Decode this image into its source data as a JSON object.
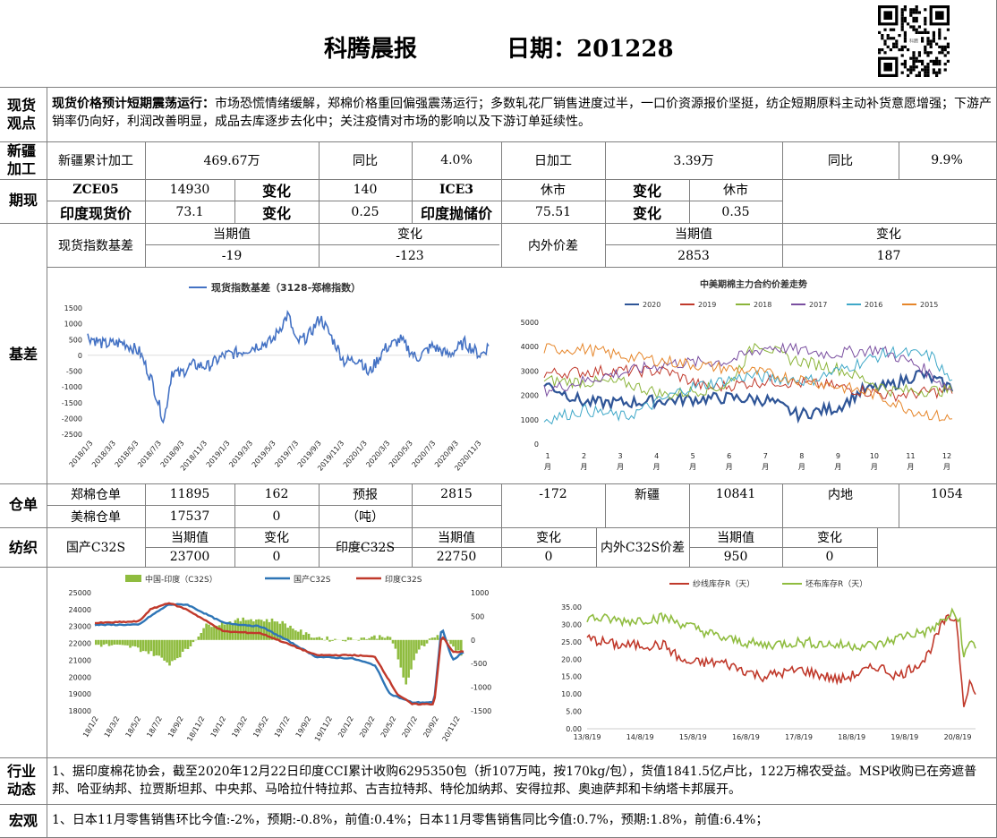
{
  "header": {
    "title": "科腾晨报",
    "date_label": "日期：201228",
    "qr_center_text": "科腾"
  },
  "spot": {
    "section_label": "现货观点",
    "headline": "现货价格预计短期震荡运行：",
    "body": "市场恐慌情绪缓解，郑棉价格重回偏强震荡运行；多数轧花厂销售进度过半，一口价资源报价坚挺，纺企短期原料主动补货意愿增强；下游产销率仍向好，利润改善明显，成品去库逐步去化中；关注疫情对市场的影响以及下游订单延续性。"
  },
  "xinjiang": {
    "section_label": "新疆加工",
    "cum_label": "新疆累计加工",
    "cum_value": "469.67万",
    "yoy_label": "同比",
    "yoy_value": "4.0%",
    "daily_label": "日加工",
    "daily_value": "3.39万",
    "yoy2_label": "同比",
    "yoy2_value": "9.9%"
  },
  "futures": {
    "section_label": "期现",
    "r1": [
      "ZCE05",
      "14930",
      "变化",
      "140",
      "ICE3",
      "休市",
      "变化",
      "休市"
    ],
    "r2": [
      "印度现货价",
      "73.1",
      "变化",
      "0.25",
      "印度抛储价",
      "75.51",
      "变化",
      "0.35"
    ]
  },
  "basis": {
    "section_label": "基差",
    "idx_label": "现货指数基差",
    "cur_label": "当期值",
    "chg_label": "变化",
    "cur_value": "-19",
    "chg_value": "-123",
    "inout_label": "内外价差",
    "cur2_label": "当期值",
    "chg2_label": "变化",
    "cur2_value": "2853",
    "chg2_value": "187"
  },
  "chart1": {
    "legend": "现货指数基差（3128-郑棉指数）",
    "color": "#4472c4",
    "y_ticks": [
      "1500",
      "1000",
      "500",
      "0",
      "-500",
      "-1000",
      "-1500",
      "-2000",
      "-2500"
    ],
    "x_ticks": [
      "2018/1/3",
      "2018/3/3",
      "2018/5/3",
      "2018/7/3",
      "2018/9/3",
      "2018/11/3",
      "2019/1/3",
      "2019/3/3",
      "2019/5/3",
      "2019/7/3",
      "2019/9/3",
      "2019/11/3",
      "2020/1/3",
      "2020/3/3",
      "2020/5/3",
      "2020/7/3",
      "2020/9/3",
      "2020/11/3"
    ]
  },
  "chart2": {
    "title": "中美期棉主力合约价差走势",
    "series": [
      {
        "name": "2020",
        "color": "#2f5597"
      },
      {
        "name": "2019",
        "color": "#c0392b"
      },
      {
        "name": "2018",
        "color": "#8bb43a"
      },
      {
        "name": "2017",
        "color": "#7a4fa0"
      },
      {
        "name": "2016",
        "color": "#3fa8c8"
      },
      {
        "name": "2015",
        "color": "#e6862a"
      }
    ],
    "y_ticks": [
      "5000",
      "4000",
      "3000",
      "2000",
      "1000",
      "0"
    ],
    "x_ticks": [
      "1",
      "2",
      "3",
      "4",
      "5",
      "6",
      "7",
      "8",
      "9",
      "10",
      "11",
      "12"
    ],
    "x_unit": "月"
  },
  "warehouse": {
    "section_label": "仓单",
    "zc_label": "郑棉仓单",
    "zc_value": "11895",
    "zc_chg": "162",
    "fc_label": "预报",
    "fc_value": "2815",
    "fc_chg": "-172",
    "xj_label": "新疆",
    "xj_value": "10841",
    "nd_label": "内地",
    "nd_value": "1054",
    "us_label": "美棉仓单",
    "us_value": "17537",
    "us_chg": "0",
    "unit": "（吨）"
  },
  "textile": {
    "section_label": "纺织",
    "dom_label": "国产C32S",
    "cur_label": "当期值",
    "chg_label": "变化",
    "dom_value": "23700",
    "dom_chg": "0",
    "ind_label": "印度C32S",
    "cur2_label": "当期值",
    "chg2_label": "变化",
    "ind_value": "22750",
    "ind_chg": "0",
    "spread_label": "内外C32S价差",
    "cur3_label": "当期值",
    "chg3_label": "变化",
    "spread_value": "950",
    "spread_chg": "0"
  },
  "chart3": {
    "legend": [
      {
        "name": "中国-印度（C32S）",
        "color": "#8fbc3f"
      },
      {
        "name": "国产C32S",
        "color": "#2e75b6"
      },
      {
        "name": "印度C32S",
        "color": "#c0392b"
      }
    ],
    "y_left": [
      "25000",
      "24000",
      "23000",
      "22000",
      "21000",
      "20000",
      "19000",
      "18000"
    ],
    "y_right": [
      "1000",
      "500",
      "0",
      "-500",
      "-1000",
      "-1500"
    ],
    "x_ticks": [
      "18/1/2",
      "18/3/2",
      "18/5/2",
      "18/7/2",
      "18/9/2",
      "18/11/2",
      "19/1/2",
      "19/3/2",
      "19/5/2",
      "19/7/2",
      "19/9/2",
      "19/11/2",
      "20/1/2",
      "20/3/2",
      "20/5/2",
      "20/7/2",
      "20/9/2",
      "20/11/2"
    ]
  },
  "chart4": {
    "legend": [
      {
        "name": "纱线库存R（天）",
        "color": "#c0392b"
      },
      {
        "name": "坯布库存R（天）",
        "color": "#8fbc3f"
      }
    ],
    "y_ticks": [
      "35.00",
      "30.00",
      "25.00",
      "20.00",
      "15.00",
      "10.00",
      "5.00",
      "0.00"
    ],
    "x_ticks": [
      "13/8/19",
      "14/8/19",
      "15/8/19",
      "16/8/19",
      "17/8/19",
      "18/8/19",
      "19/8/19",
      "20/8/19"
    ]
  },
  "industry": {
    "section_label": "行业动态",
    "text": "1、据印度棉花协会，截至2020年12月22日印度CCI累计收购6295350包（折107万吨，按170kg/包），货值1841.5亿卢比，122万棉农受益。MSP收购已在旁遮普邦、哈亚纳邦、拉贾斯坦邦、中央邦、马哈拉什特拉邦、古吉拉特邦、特伦加纳邦、安得拉邦、奥迪萨邦和卡纳塔卡邦展开。"
  },
  "macro": {
    "section_label": "宏观",
    "text": "1、日本11月零售销售环比今值:-2%，预期:-0.8%，前值:0.4%；日本11月零售销售同比今值:0.7%，预期:1.8%，前值:6.4%；"
  }
}
